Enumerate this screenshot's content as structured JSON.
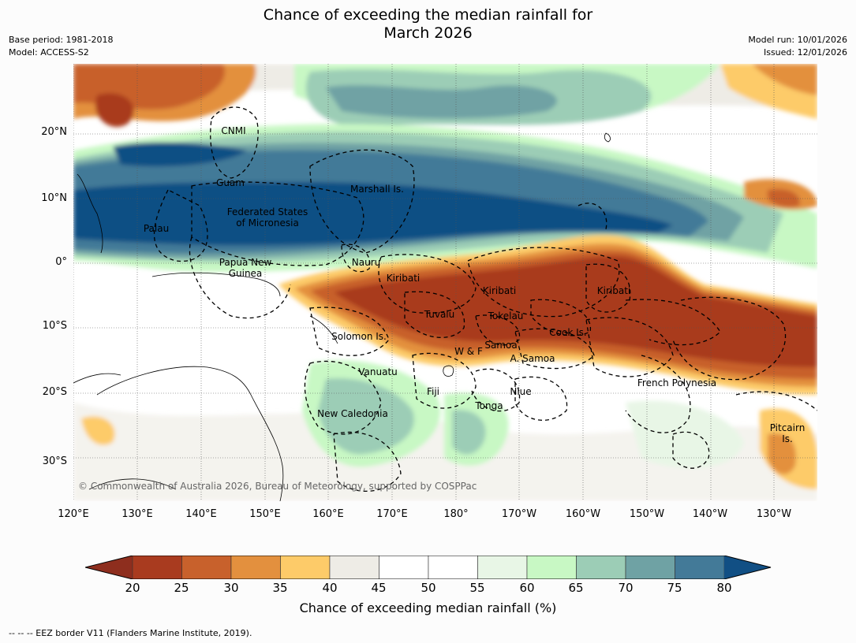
{
  "title_line1": "Chance of exceeding the median rainfall for",
  "title_line2": "March 2026",
  "base_period": "Base period: 1981-2018",
  "model": "Model: ACCESS-S2",
  "model_run": "Model run: 10/01/2026",
  "issued": "Issued: 12/01/2026",
  "lat_ticks": [
    "20°N",
    "10°N",
    "0°",
    "10°S",
    "20°S",
    "30°S"
  ],
  "lon_ticks": [
    "120°E",
    "130°E",
    "140°E",
    "150°E",
    "160°E",
    "170°E",
    "180°",
    "170°W",
    "160°W",
    "150°W",
    "140°W",
    "130°W"
  ],
  "regions": {
    "cnmi": "CNMI",
    "guam": "Guam",
    "marshall": "Marshall Is.",
    "fsm1": "Federated States",
    "fsm2": "of Micronesia",
    "palau": "Palau",
    "png1": "Papua New",
    "png2": "Guinea",
    "nauru": "Nauru",
    "kiribati_w": "Kiribati",
    "kiribati_c": "Kiribati",
    "kiribati_e": "Kiribati",
    "tuvalu": "Tuvalu",
    "tokelau": "Tokelau",
    "solomon": "Solomon Is.",
    "cook": "Cook Is.",
    "samoa": "Samoa",
    "wf": "W & F",
    "asamoa": "A. Samoa",
    "vanuatu": "Vanuatu",
    "fiji": "Fiji",
    "niue": "Niue",
    "tonga": "Tonga",
    "newcal": "New Caledonia",
    "frpoly": "French Polynesia",
    "pitcairn1": "Pitcairn",
    "pitcairn2": "Is."
  },
  "copyright": "© Commonwealth of Australia 2026, Bureau of Meteorology, supported by COSPPac",
  "colorbar": {
    "ticks": [
      "20",
      "25",
      "30",
      "35",
      "40",
      "45",
      "50",
      "55",
      "60",
      "65",
      "70",
      "75",
      "80"
    ],
    "colors": [
      "#a93b1f",
      "#c8612c",
      "#e3903e",
      "#fdcb69",
      "#eeece6",
      "#ffffff",
      "#ffffff",
      "#e8f6e6",
      "#c8f8c4",
      "#9ccdb6",
      "#6fa2a4",
      "#437a98"
    ],
    "under_color": "#8e2e1e",
    "over_color": "#114f84",
    "label": "Chance of exceeding median rainfall (%)"
  },
  "footer": "--  --  -- EEZ border V11 (Flanders Marine Institute, 2019)."
}
